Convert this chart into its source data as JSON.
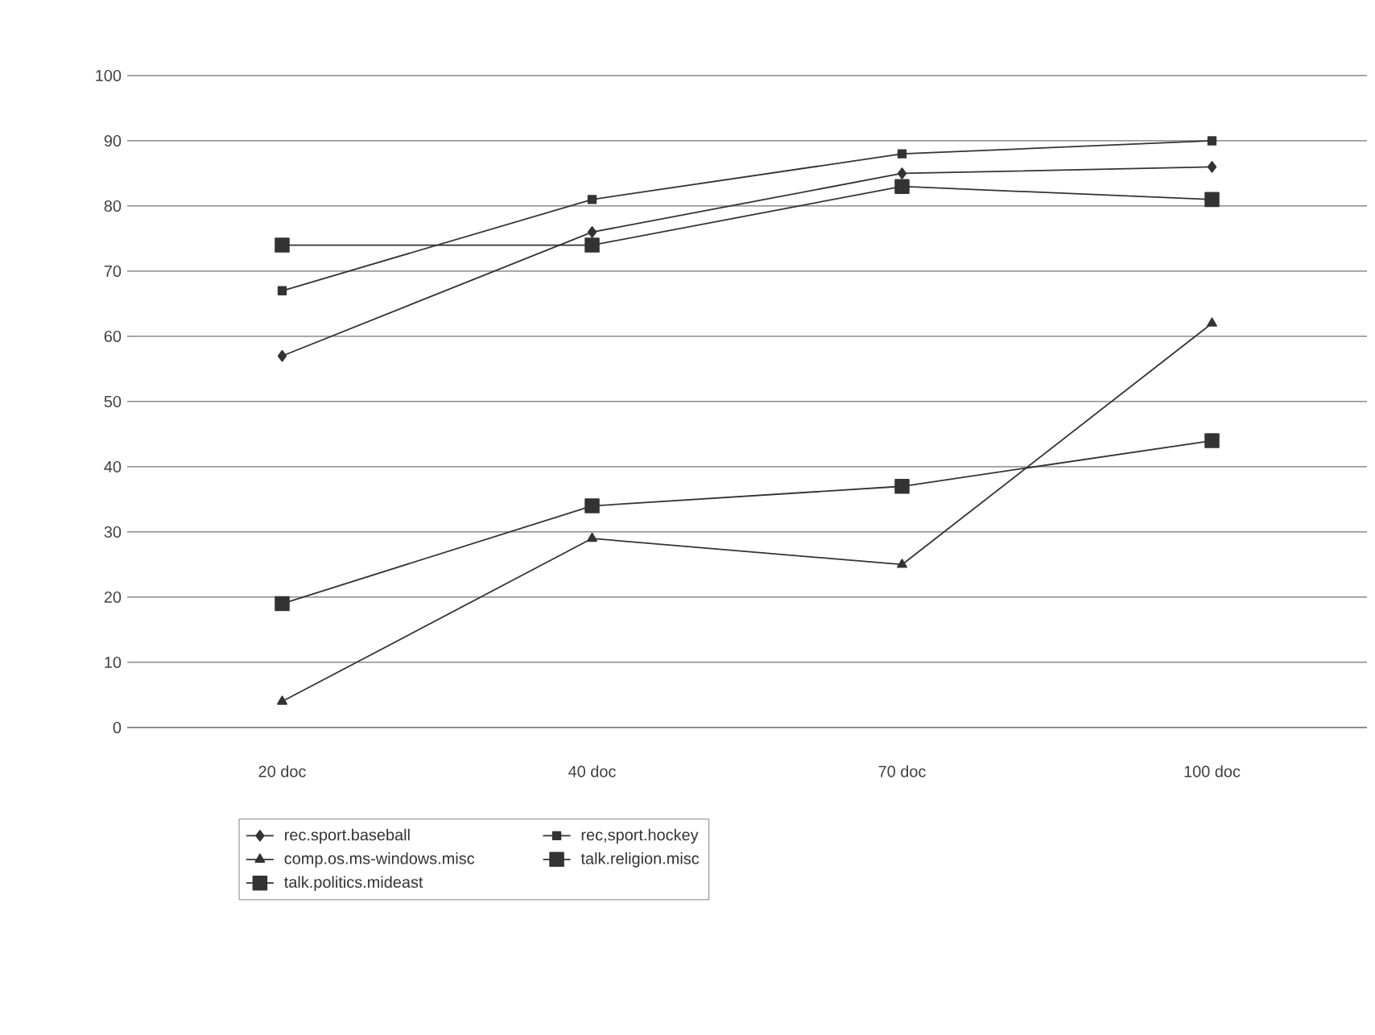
{
  "chart_data": {
    "type": "line",
    "categories": [
      "20 doc",
      "40 doc",
      "70 doc",
      "100 doc"
    ],
    "series": [
      {
        "name": "rec.sport.baseball",
        "color": "#333333",
        "marker": "diamond",
        "values": [
          57,
          76,
          85,
          86
        ]
      },
      {
        "name": "rec,sport.hockey",
        "color": "#333333",
        "marker": "square",
        "values": [
          67,
          81,
          88,
          90
        ]
      },
      {
        "name": "comp.os.ms-windows.misc",
        "color": "#333333",
        "marker": "triangle",
        "values": [
          4,
          29,
          25,
          62
        ]
      },
      {
        "name": "talk.religion.misc",
        "color": "#333333",
        "marker": "square",
        "values": [
          74,
          74,
          83,
          81
        ]
      },
      {
        "name": "talk.politics.mideast",
        "color": "#333333",
        "marker": "square",
        "values": [
          19,
          34,
          37,
          44
        ]
      }
    ],
    "ylim": [
      0,
      100
    ],
    "yticks": [
      0,
      10,
      20,
      30,
      40,
      50,
      60,
      70,
      80,
      90,
      100
    ],
    "grid": "y",
    "legend": "bottom",
    "line_style": "solid"
  }
}
